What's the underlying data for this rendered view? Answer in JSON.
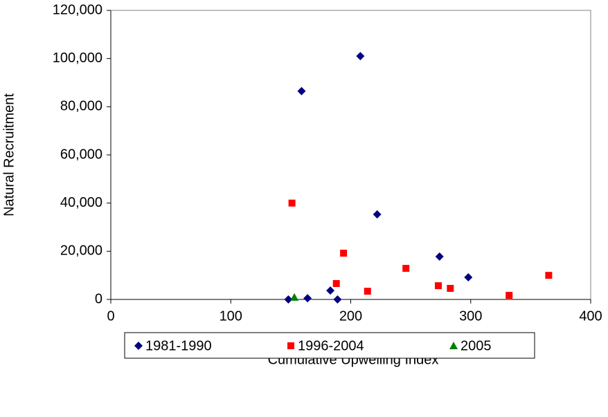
{
  "chart_data": {
    "type": "scatter",
    "x_label": "Cumulative Upwelling Index",
    "y_label": "Natural Recruitment",
    "xlim": [
      0,
      400
    ],
    "xticks": [
      0,
      100,
      200,
      300,
      400
    ],
    "ylim": [
      0,
      120000
    ],
    "yticks": [
      0,
      {
        "value": 20000,
        "label": "20,000"
      },
      {
        "value": 40000,
        "label": "40,000"
      },
      {
        "value": 60000,
        "label": "60,000"
      },
      {
        "value": 80000,
        "label": "80,000"
      },
      {
        "value": 100000,
        "label": "100,000"
      },
      {
        "value": 120000,
        "label": "120,000"
      }
    ],
    "legend": "bottom",
    "series": [
      {
        "name": "1981-1990",
        "color": "#000080",
        "marker": "diamond",
        "x": [
          148,
          159,
          164,
          183,
          189,
          208,
          222,
          274,
          298
        ],
        "values": [
          0,
          86500,
          500,
          3700,
          0,
          101000,
          35300,
          17800,
          9200
        ]
      },
      {
        "name": "1996-2004",
        "color": "#ff0000",
        "marker": "square",
        "x": [
          151,
          188,
          194,
          214,
          246,
          273,
          283,
          332,
          365
        ],
        "values": [
          40000,
          6600,
          19200,
          3400,
          12900,
          5700,
          4600,
          1700,
          10000
        ]
      },
      {
        "name": "2005",
        "color": "#008000",
        "marker": "triangle",
        "x": [
          153
        ],
        "values": [
          900
        ]
      }
    ]
  }
}
